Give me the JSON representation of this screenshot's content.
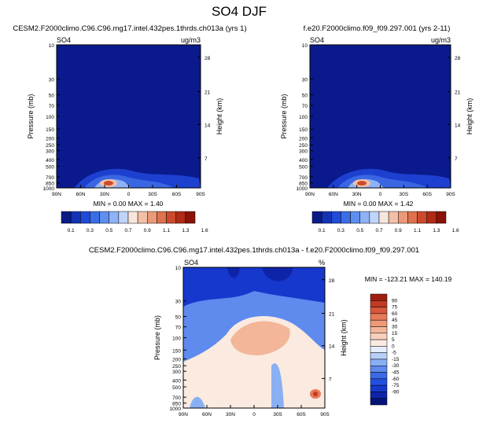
{
  "figure": {
    "title": "SO4 DJF"
  },
  "colors": {
    "deep": "#0a1a8c",
    "blue": "#1a36c8",
    "axis": "#000000",
    "seq_scale": [
      "#0b1b86",
      "#1432b4",
      "#1f4bd8",
      "#3a6ee6",
      "#5e8ef0",
      "#8fb2f6",
      "#c0d4fa",
      "#f7e6dc",
      "#f2c0a6",
      "#ea9a78",
      "#e0714e",
      "#cc4a2c",
      "#b02a16",
      "#8a1206"
    ],
    "div_scale": [
      "#07137a",
      "#0e24a8",
      "#1638cc",
      "#2450e0",
      "#3b6ae6",
      "#5f8aee",
      "#8ab0f4",
      "#b7cff8",
      "#e5ecfb",
      "#faeadf",
      "#f7d1bd",
      "#f3b699",
      "#ef9a77",
      "#e67a58",
      "#d9573b",
      "#c23a24",
      "#9e1f10"
    ]
  },
  "chart_data": [
    {
      "type": "heatmap",
      "title": "CESM2.F2000climo.C96.C96.mg17.intel.432pes.1thrds.ch013a (yrs 1)",
      "field": "SO4",
      "units": "ug/m3",
      "ylabel": "Pressure (mb)",
      "ylabel_right": "Height (km)",
      "x_ticks": [
        "90N",
        "60N",
        "30N",
        "0",
        "30S",
        "60S",
        "90S"
      ],
      "y_ticks": [
        10,
        30,
        50,
        70,
        100,
        150,
        200,
        250,
        300,
        400,
        500,
        700,
        850,
        1000
      ],
      "y_right_ticks": [
        28,
        21,
        14,
        7
      ],
      "y_log": true,
      "stats": "MIN =   0.00  MAX =   1.40",
      "colorbar_labels": [
        "0.1",
        "0.3",
        "0.5",
        "0.7",
        "0.9",
        "1.1",
        "1.3",
        "1.6"
      ]
    },
    {
      "type": "heatmap",
      "title": "f.e20.F2000climo.f09_f09.297.001 (yrs 2-11)",
      "field": "SO4",
      "units": "ug/m3",
      "ylabel": "Pressure (mb)",
      "ylabel_right": "Height (km)",
      "x_ticks": [
        "90N",
        "60N",
        "30N",
        "0",
        "30S",
        "60S",
        "90S"
      ],
      "y_ticks": [
        10,
        30,
        50,
        70,
        100,
        150,
        200,
        250,
        300,
        400,
        500,
        700,
        850,
        1000
      ],
      "y_right_ticks": [
        28,
        21,
        14,
        7
      ],
      "y_log": true,
      "stats": "MIN =   0.00  MAX =   1.42",
      "colorbar_labels": [
        "0.1",
        "0.3",
        "0.5",
        "0.7",
        "0.9",
        "1.1",
        "1.3",
        "1.6"
      ]
    },
    {
      "type": "heatmap",
      "title": "CESM2.F2000climo.C96.C96.mg17.intel.432pes.1thrds.ch013a - f.e20.F2000climo.f09_f09.297.001",
      "field": "SO4",
      "units": "%",
      "ylabel": "Pressure (mb)",
      "ylabel_right": "Height (km)",
      "x_ticks": [
        "90N",
        "60N",
        "30N",
        "0",
        "30S",
        "60S",
        "90S"
      ],
      "y_ticks": [
        10,
        30,
        50,
        70,
        100,
        150,
        200,
        250,
        300,
        400,
        500,
        700,
        850,
        1000
      ],
      "y_right_ticks": [
        28,
        21,
        14,
        7
      ],
      "y_log": true,
      "stats": "MIN = -123.21  MAX = 140.19",
      "colorbar_labels": [
        "90",
        "75",
        "60",
        "45",
        "30",
        "15",
        "5",
        "0",
        "-5",
        "-15",
        "-30",
        "-45",
        "-60",
        "-75",
        "-90"
      ]
    }
  ]
}
